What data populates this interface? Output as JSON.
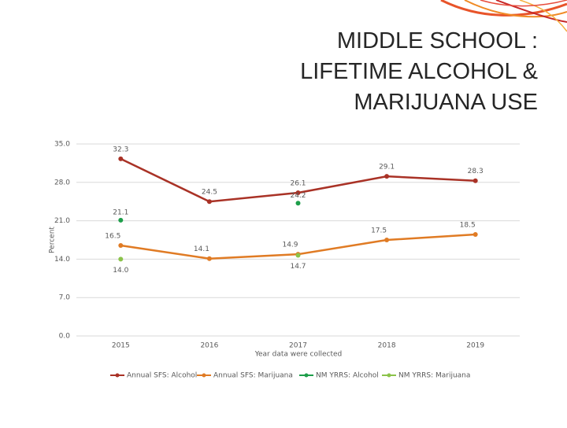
{
  "chart_data": {
    "type": "line",
    "title": "MIDDLE SCHOOL : LIFETIME ALCOHOL & MARIJUANA USE",
    "y_label": "Percent",
    "x_label": "Year data were collected",
    "categories": [
      "2015",
      "2016",
      "2017",
      "2018",
      "2019"
    ],
    "series": [
      {
        "name": "Annual SFS: Alcohol",
        "color": "#a93226",
        "line": true,
        "values": [
          32.3,
          24.5,
          26.1,
          29.1,
          28.3
        ]
      },
      {
        "name": "Annual SFS: Marijuana",
        "color": "#e07b24",
        "line": true,
        "values": [
          16.5,
          14.1,
          14.9,
          17.5,
          18.5
        ]
      },
      {
        "name": "NM YRRS: Alcohol",
        "color": "#1e9e4a",
        "line": false,
        "values": [
          21.1,
          null,
          24.2,
          null,
          null
        ]
      },
      {
        "name": "NM YRRS: Marijuana",
        "color": "#8bc34a",
        "line": false,
        "values": [
          14.0,
          null,
          14.7,
          null,
          null
        ],
        "value_labels": [
          "14.0",
          null,
          "14.7",
          null,
          null
        ]
      }
    ],
    "ylim": [
      0,
      35
    ],
    "yticks": [
      {
        "value": 0,
        "label": "0.0"
      },
      {
        "value": 7,
        "label": "7.0"
      },
      {
        "value": 14,
        "label": "14.0"
      },
      {
        "value": 21,
        "label": "21.0"
      },
      {
        "value": 28,
        "label": "28.0"
      },
      {
        "value": 35,
        "label": "35.0"
      }
    ],
    "grid": true,
    "legend": "bottom"
  }
}
